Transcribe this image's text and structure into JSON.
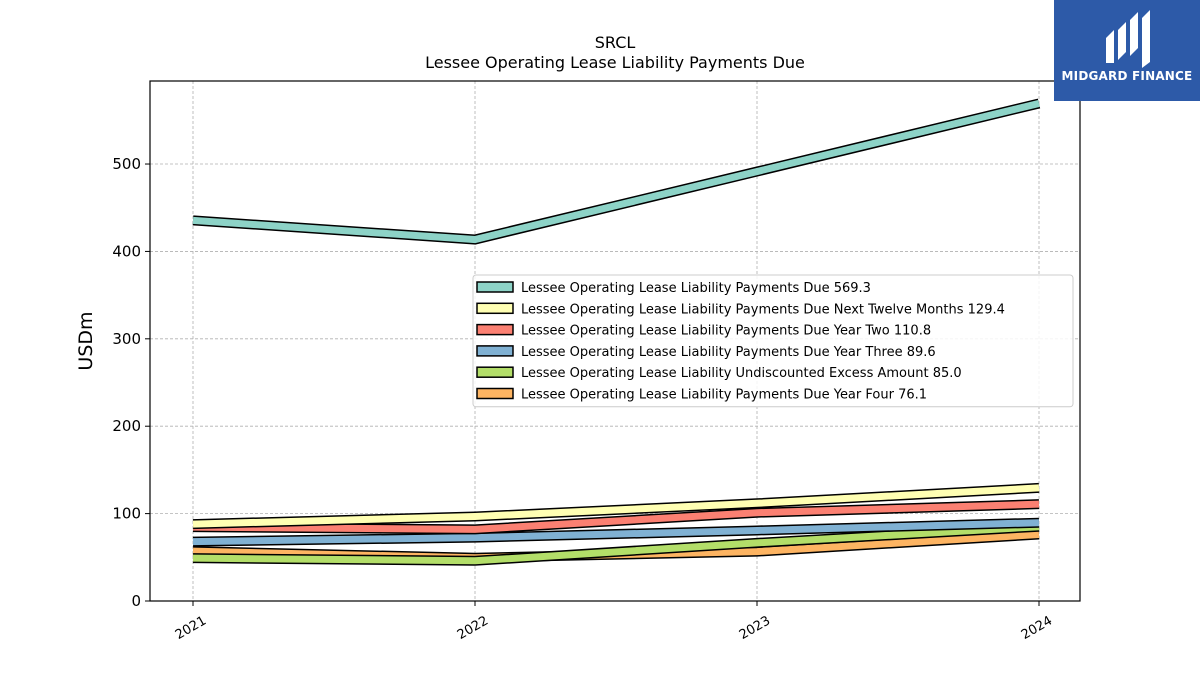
{
  "logo": {
    "text": "MIDGARD FINANCE"
  },
  "chart_data": {
    "type": "line",
    "title": [
      "SRCL",
      "Lessee Operating Lease Liability Payments Due"
    ],
    "xlabel": "",
    "ylabel": "USDm",
    "x": [
      "2021",
      "2022",
      "2023",
      "2024"
    ],
    "ylim": [
      0,
      595
    ],
    "yticks": [
      0,
      100,
      200,
      300,
      400,
      500
    ],
    "grid": true,
    "legend_position": "center-right",
    "series": [
      {
        "name": "Lessee Operating Lease Liability Payments Due",
        "legend_value": "569.3",
        "color": "#8dd3c7",
        "values": [
          435.5,
          413.6,
          491.4,
          569.3
        ]
      },
      {
        "name": "Lessee Operating Lease Liability Payments Due Next Twelve Months",
        "legend_value": "129.4",
        "color": "#ffffb3",
        "values": [
          88.0,
          96.7,
          111.8,
          129.4
        ]
      },
      {
        "name": "Lessee Operating Lease Liability Payments Due Year Two",
        "legend_value": "110.8",
        "color": "#fb8072",
        "values": [
          84.5,
          82.0,
          101.0,
          110.8
        ]
      },
      {
        "name": "Lessee Operating Lease Liability Payments Due Year Three",
        "legend_value": "89.6",
        "color": "#80b1d3",
        "values": [
          68.0,
          72.5,
          80.7,
          89.6
        ]
      },
      {
        "name": "Lessee Operating Lease Liability Undiscounted Excess Amount",
        "legend_value": "85.0",
        "color": "#b3de69",
        "values": [
          49.0,
          46.0,
          66.5,
          85.0
        ]
      },
      {
        "name": "Lessee Operating Lease Liability Payments Due Year Four",
        "legend_value": "76.1",
        "color": "#fdb462",
        "values": [
          57.0,
          49.5,
          56.5,
          76.1
        ]
      }
    ]
  }
}
